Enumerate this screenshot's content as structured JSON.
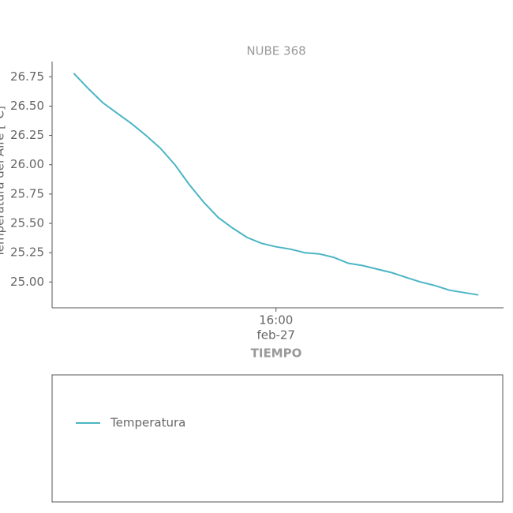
{
  "chart_data": {
    "type": "line",
    "title": "NUBE 368",
    "y_label": "Temperatura del Aire [°C]",
    "x_label": "TIEMPO",
    "x": [
      "15:04",
      "15:08",
      "15:12",
      "15:16",
      "15:20",
      "15:24",
      "15:28",
      "15:32",
      "15:36",
      "15:40",
      "15:44",
      "15:48",
      "15:52",
      "15:56",
      "16:00",
      "16:04",
      "16:08",
      "16:12",
      "16:16",
      "16:20",
      "16:24",
      "16:28",
      "16:32",
      "16:36",
      "16:40",
      "16:44",
      "16:48",
      "16:52",
      "16:56"
    ],
    "series": [
      {
        "name": "Temperatura",
        "color": "#4ab5c4",
        "values": [
          26.78,
          26.65,
          26.53,
          26.44,
          26.35,
          26.25,
          26.14,
          26.0,
          25.83,
          25.68,
          25.55,
          25.46,
          25.38,
          25.33,
          25.3,
          25.28,
          25.25,
          25.24,
          25.21,
          25.16,
          25.14,
          25.11,
          25.08,
          25.04,
          25.0,
          24.97,
          24.93,
          24.91,
          24.89
        ]
      }
    ],
    "xlim": [
      "14:58",
      "17:03"
    ],
    "xticks": [
      "16:00"
    ],
    "xtick_sublabels": [
      "feb-27"
    ],
    "ylim": [
      24.78,
      26.88
    ],
    "yticks": [
      {
        "value": 25,
        "label": "25.00"
      },
      {
        "value": 25.25,
        "label": "25.25"
      },
      {
        "value": 25.5,
        "label": "25.50"
      },
      {
        "value": 25.75,
        "label": "25.75"
      },
      {
        "value": 26,
        "label": "26.00"
      },
      {
        "value": 26.25,
        "label": "26.25"
      },
      {
        "value": 26.5,
        "label": "26.50"
      },
      {
        "value": 26.75,
        "label": "26.75"
      }
    ],
    "grid": false
  }
}
